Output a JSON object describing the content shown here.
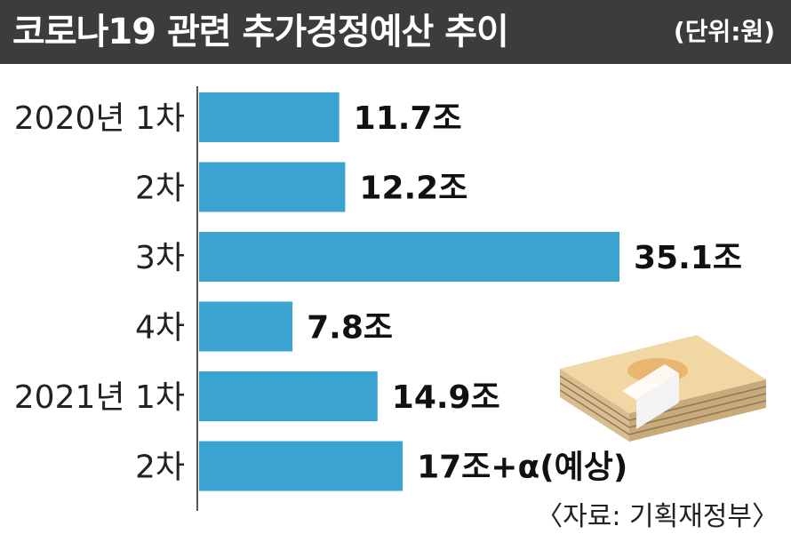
{
  "header": {
    "title": "코로나19 관련 추가경정예산 추이",
    "unit": "(단위:원)"
  },
  "source": "〈자료: 기획재정부〉",
  "colors": {
    "bar": "#3aa3cf",
    "header_bg": "#3c3c3c"
  },
  "chart_data": {
    "type": "bar",
    "orientation": "horizontal",
    "title": "코로나19 관련 추가경정예산 추이",
    "unit": "(단위:원)",
    "categories": [
      "2020년 1차",
      "2차",
      "3차",
      "4차",
      "2021년 1차",
      "2차"
    ],
    "values": [
      11.7,
      12.2,
      35.1,
      7.8,
      14.9,
      17
    ],
    "value_labels": [
      "11.7조",
      "12.2조",
      "35.1조",
      "7.8조",
      "14.9조",
      "17조+α(예상)"
    ],
    "xlim": [
      0,
      37
    ],
    "grid": false,
    "legend": "none",
    "colors": [
      "#3aa3cf"
    ],
    "source": "〈자료: 기획재정부〉"
  }
}
